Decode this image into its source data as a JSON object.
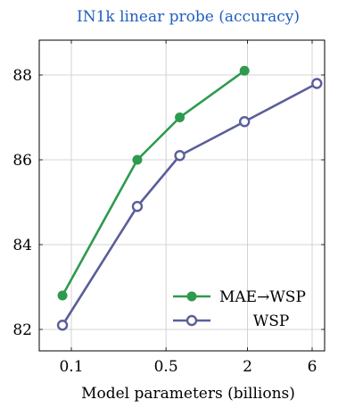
{
  "chart_data": {
    "type": "line",
    "title": "IN1k linear probe (accuracy)",
    "xlabel": "Model parameters (billions)",
    "ylabel": "",
    "x_scale": "log",
    "x": [
      0.086,
      0.307,
      0.632,
      1.9,
      6.5
    ],
    "x_ticks": [
      0.1,
      0.5,
      2,
      6
    ],
    "x_tick_labels": [
      "0.1",
      "0.5",
      "2",
      "6"
    ],
    "y_ticks": [
      82,
      84,
      86,
      88
    ],
    "ylim": [
      81.5,
      89.0
    ],
    "grid": true,
    "legend_position": "bottom-right",
    "series": [
      {
        "name": "MAE→WSP",
        "color": "#2e9a4e",
        "filled": true,
        "x": [
          0.086,
          0.307,
          0.632,
          1.9
        ],
        "values": [
          82.8,
          86.0,
          87.0,
          88.1
        ]
      },
      {
        "name": "WSP",
        "color": "#5b5e9a",
        "filled": false,
        "x": [
          0.086,
          0.307,
          0.632,
          1.9,
          6.5
        ],
        "values": [
          82.1,
          84.9,
          86.1,
          86.9,
          87.8
        ]
      }
    ],
    "title_color": "#1f5fbf"
  }
}
